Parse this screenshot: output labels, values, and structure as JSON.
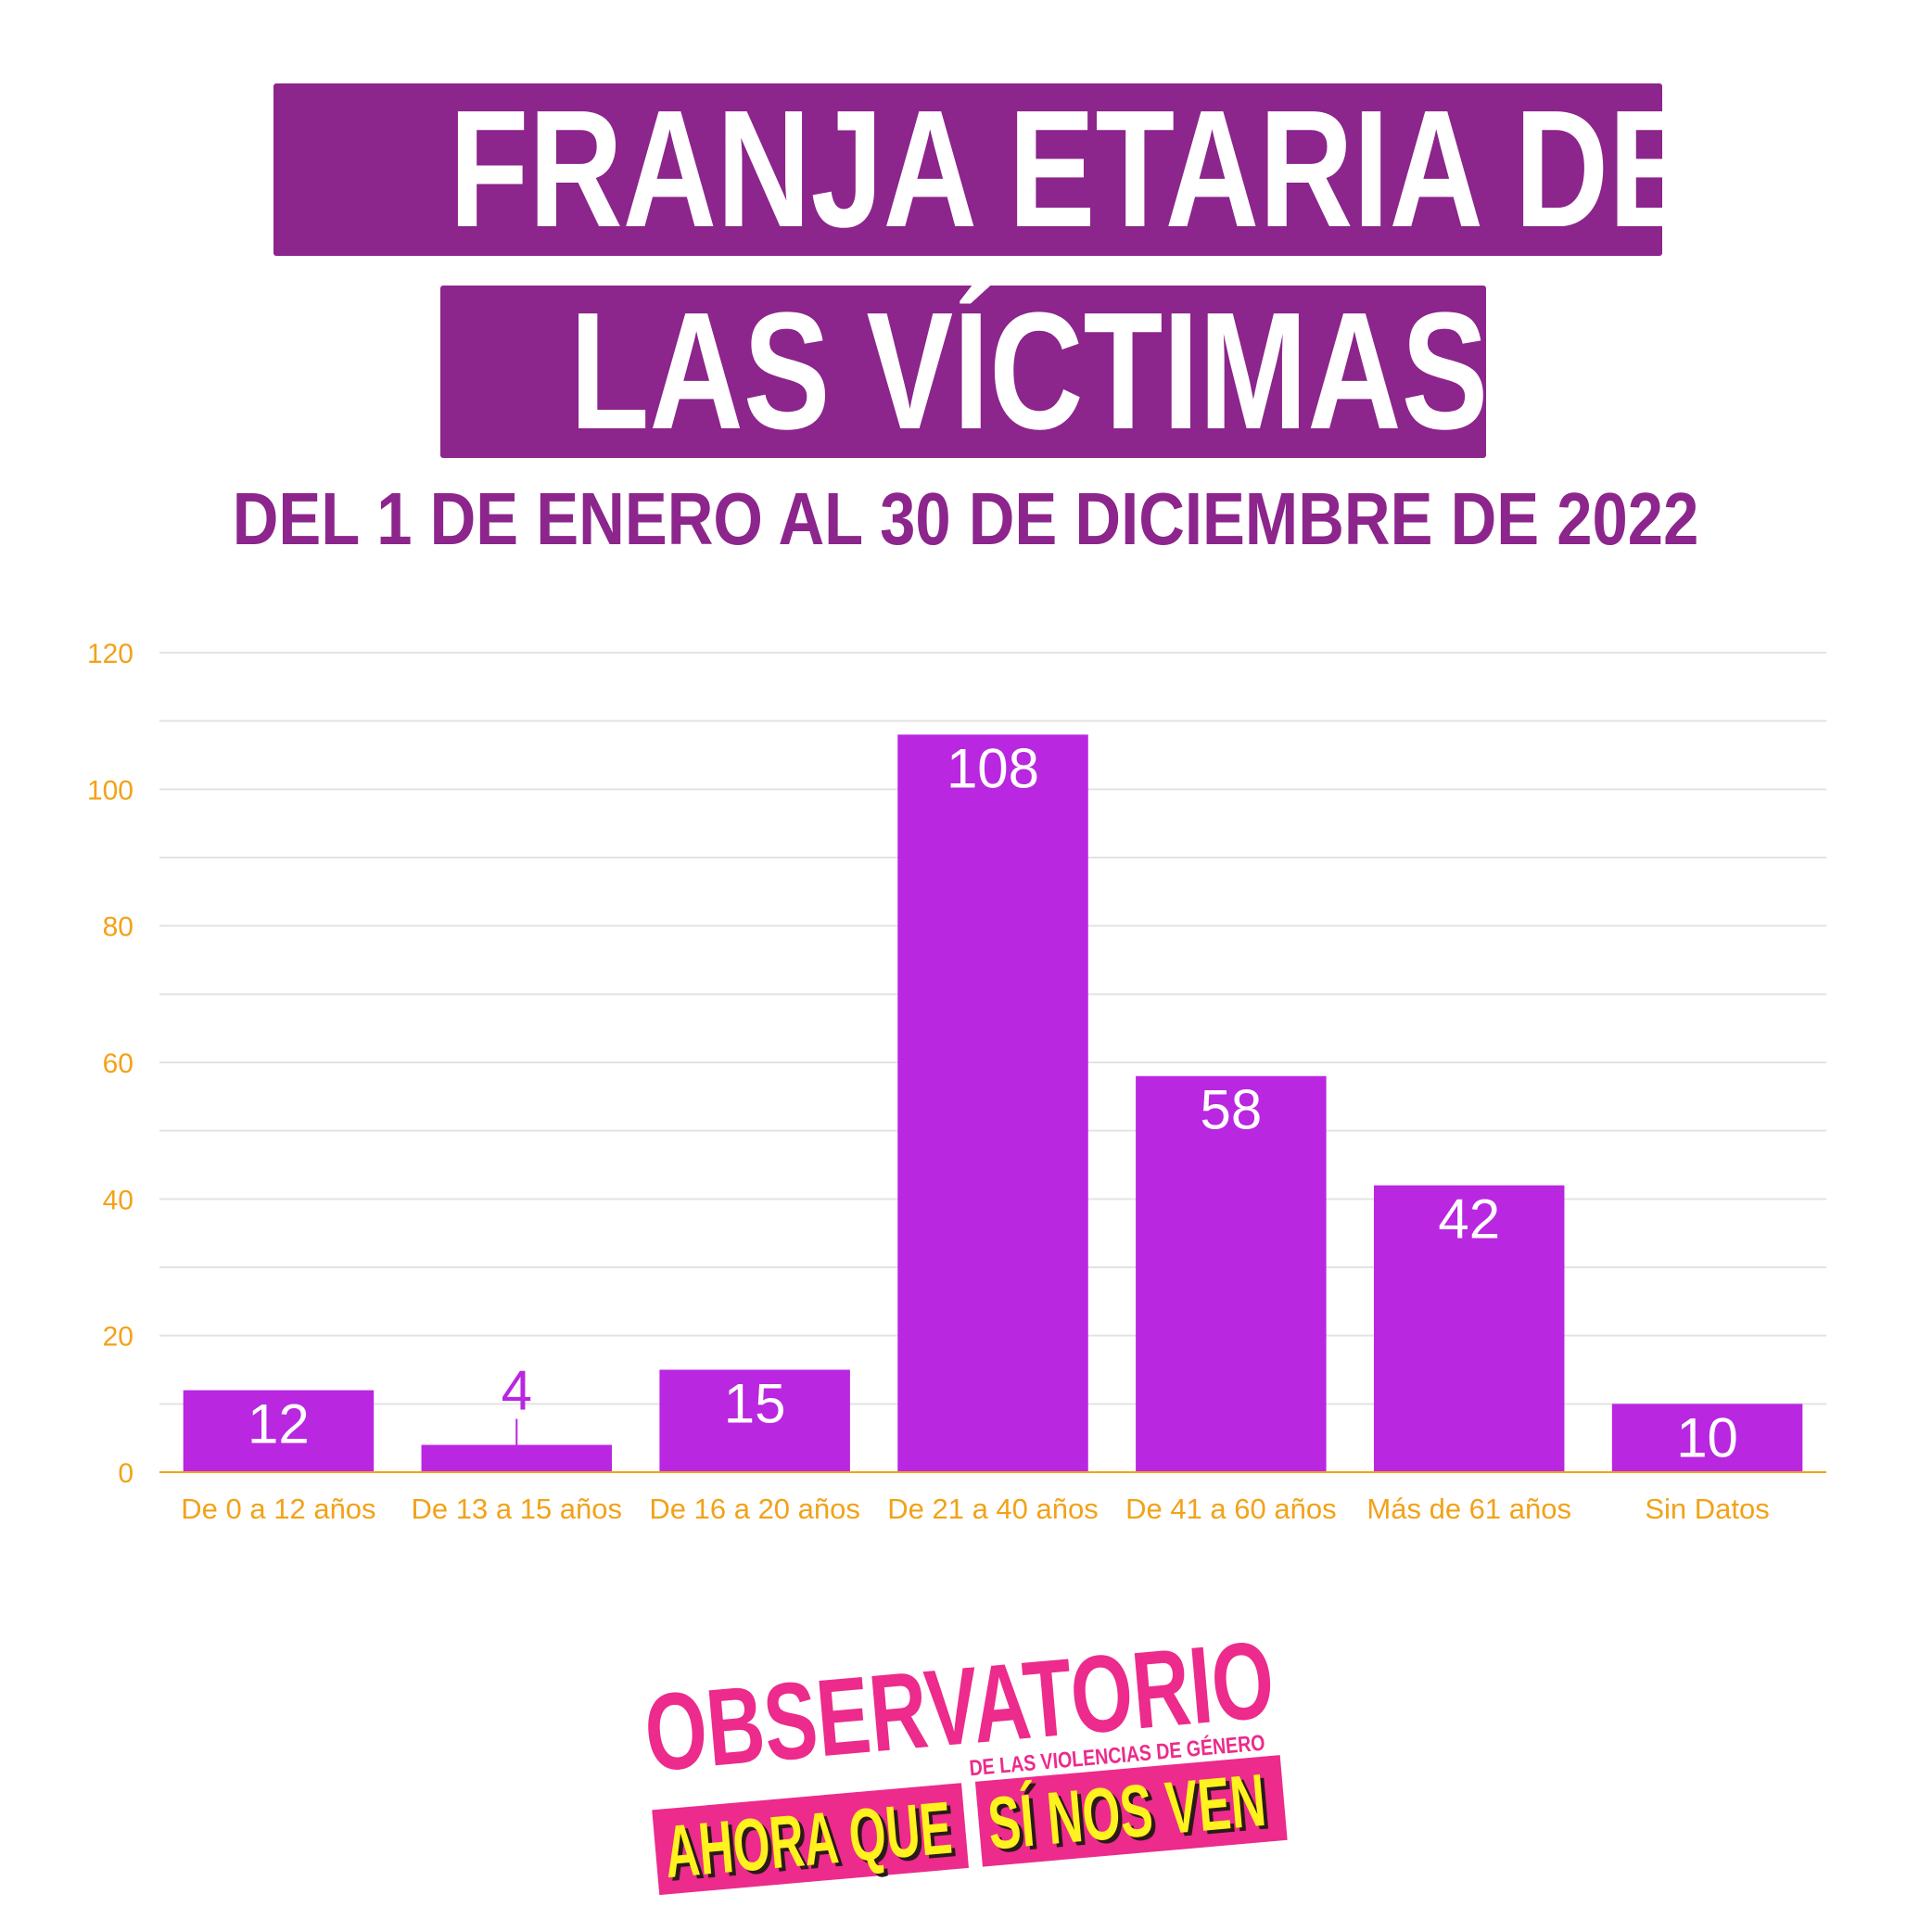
{
  "title": {
    "line1": "FRANJA ETARIA DE",
    "line2": "LAS VÍCTIMAS"
  },
  "subtitle": "DEL 1 DE ENERO AL 30 DE DICIEMBRE DE 2022",
  "colors": {
    "title_bg": "#8c258c",
    "bar": "#b927e0",
    "axis_text": "#f2a219",
    "logo_pink": "#ec2b8c",
    "logo_yellow": "#fff21e"
  },
  "chart_data": {
    "type": "bar",
    "categories": [
      "De 0 a 12 años",
      "De 13 a 15 años",
      "De 16 a 20 años",
      "De 21 a 40 años",
      "De 41 a 60 años",
      "Más de 61 años",
      "Sin Datos"
    ],
    "values": [
      12,
      4,
      15,
      108,
      58,
      42,
      10
    ],
    "ylim": [
      0,
      120
    ],
    "yticks": [
      0,
      20,
      40,
      60,
      80,
      100,
      120
    ],
    "grid": true,
    "xlabel": "",
    "ylabel": ""
  },
  "logo": {
    "word1": "OBSERVATORIO",
    "tagline": "DE LAS VIOLENCIAS DE GÉNERO",
    "word2": "AHORA QUE",
    "word3": "SÍ NOS VEN"
  }
}
